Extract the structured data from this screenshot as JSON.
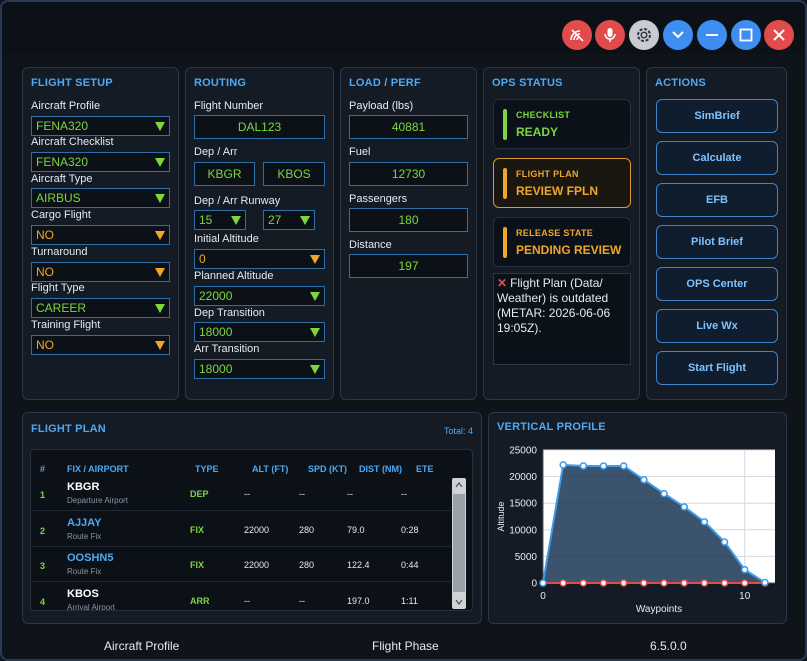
{
  "window": {
    "buttons": [
      {
        "name": "connection-icon",
        "color": "#e24b4b"
      },
      {
        "name": "microphone-icon",
        "color": "#e24b4b"
      },
      {
        "name": "gear-icon",
        "color": "#c8ccd2"
      },
      {
        "name": "chevron-down-icon",
        "color": "#3d8ef0"
      },
      {
        "name": "minimize-icon",
        "color": "#3d8ef0"
      },
      {
        "name": "maximize-icon",
        "color": "#3d8ef0"
      },
      {
        "name": "close-icon",
        "color": "#e24b4b"
      }
    ]
  },
  "flight_setup": {
    "title": "FLIGHT SETUP",
    "fields": [
      {
        "label": "Aircraft Profile",
        "value": "FENA320",
        "color": "green"
      },
      {
        "label": "Aircraft Checklist",
        "value": "FENA320",
        "color": "green"
      },
      {
        "label": "Aircraft Type",
        "value": "AIRBUS",
        "color": "green"
      },
      {
        "label": "Cargo Flight",
        "value": "NO",
        "color": "orange"
      },
      {
        "label": "Turnaround",
        "value": "NO",
        "color": "orange"
      },
      {
        "label": "Flight Type",
        "value": "CAREER",
        "color": "green"
      },
      {
        "label": "Training Flight",
        "value": "NO",
        "color": "orange"
      }
    ]
  },
  "routing": {
    "title": "ROUTING",
    "flight_number_label": "Flight Number",
    "flight_number": "DAL123",
    "dep_arr_label": "Dep / Arr",
    "dep": "KBGR",
    "arr": "KBOS",
    "runway_label": "Dep / Arr Runway",
    "dep_runway": "15",
    "arr_runway": "27",
    "initial_alt_label": "Initial Altitude",
    "initial_alt": "0",
    "planned_alt_label": "Planned Altitude",
    "planned_alt": "22000",
    "dep_transition_label": "Dep Transition",
    "dep_transition": "18000",
    "arr_transition_label": "Arr Transition",
    "arr_transition": "18000"
  },
  "load_perf": {
    "title": "LOAD / PERF",
    "payload_label": "Payload (lbs)",
    "payload": "40881",
    "fuel_label": "Fuel",
    "fuel": "12730",
    "passengers_label": "Passengers",
    "passengers": "180",
    "distance_label": "Distance",
    "distance": "197"
  },
  "ops_status": {
    "title": "OPS STATUS",
    "items": [
      {
        "label": "CHECKLIST",
        "value": "READY",
        "color": "#7bd63f"
      },
      {
        "label": "FLIGHT PLAN",
        "value": "REVIEW FPLN",
        "color": "#f0a62a"
      },
      {
        "label": "RELEASE STATE",
        "value": "PENDING REVIEW",
        "color": "#f0a62a"
      }
    ],
    "message": "Flight Plan (Data/ Weather) is outdated (METAR: 2026-06-06 19:05Z)."
  },
  "actions": {
    "title": "ACTIONS",
    "buttons": [
      "SimBrief",
      "Calculate",
      "EFB",
      "Pilot Brief",
      "OPS Center",
      "Live Wx",
      "Start Flight"
    ]
  },
  "flight_plan": {
    "title": "FLIGHT PLAN",
    "total": "Total: 4",
    "columns": [
      "#",
      "FIX / AIRPORT",
      "TYPE",
      "ALT (FT)",
      "SPD (KT)",
      "DIST (NM)",
      "ETE"
    ],
    "rows": [
      {
        "num": "1",
        "fix": "KBGR",
        "sub": "Departure Airport",
        "type": "DEP",
        "alt": "--",
        "spd": "--",
        "dist": "--",
        "ete": "--",
        "fix_color": "#ffffff"
      },
      {
        "num": "2",
        "fix": "AJJAY",
        "sub": "Route Fix",
        "type": "FIX",
        "alt": "22000",
        "spd": "280",
        "dist": "79.0",
        "ete": "0:28",
        "fix_color": "#4ea9f2"
      },
      {
        "num": "3",
        "fix": "OOSHN5",
        "sub": "Route Fix",
        "type": "FIX",
        "alt": "22000",
        "spd": "280",
        "dist": "122.4",
        "ete": "0:44",
        "fix_color": "#4ea9f2"
      },
      {
        "num": "4",
        "fix": "KBOS",
        "sub": "Arrival Airport",
        "type": "ARR",
        "alt": "--",
        "spd": "--",
        "dist": "197.0",
        "ete": "1:11",
        "fix_color": "#ffffff"
      }
    ]
  },
  "vertical_profile": {
    "title": "VERTICAL PROFILE"
  },
  "chart_data": {
    "type": "line",
    "title": "VERTICAL PROFILE",
    "xlabel": "Waypoints",
    "ylabel": "Altitude",
    "xlim": [
      0,
      11.5
    ],
    "ylim": [
      0,
      25000
    ],
    "yticks": [
      0,
      5000,
      10000,
      15000,
      20000,
      25000
    ],
    "xticks": [
      0,
      10
    ],
    "grid": true,
    "series": [
      {
        "values": [
          {
            "x": 0,
            "y": 0
          },
          {
            "x": 1,
            "y": 22200
          },
          {
            "x": 2,
            "y": 22000
          },
          {
            "x": 3,
            "y": 22000
          },
          {
            "x": 4,
            "y": 22000
          },
          {
            "x": 5,
            "y": 19400
          },
          {
            "x": 6,
            "y": 16800
          },
          {
            "x": 7,
            "y": 14300
          },
          {
            "x": 8,
            "y": 11500
          },
          {
            "x": 9,
            "y": 7700
          },
          {
            "x": 10,
            "y": 2500
          },
          {
            "x": 11,
            "y": 100
          }
        ],
        "color": "#3d9bea"
      },
      {
        "values": [
          {
            "x": 0,
            "y": 0
          },
          {
            "x": 1,
            "y": 0
          },
          {
            "x": 2,
            "y": 0
          },
          {
            "x": 3,
            "y": 0
          },
          {
            "x": 4,
            "y": 0
          },
          {
            "x": 5,
            "y": 0
          },
          {
            "x": 6,
            "y": 0
          },
          {
            "x": 7,
            "y": 0
          },
          {
            "x": 8,
            "y": 0
          },
          {
            "x": 9,
            "y": 0
          },
          {
            "x": 10,
            "y": 0
          },
          {
            "x": 11,
            "y": 0
          }
        ],
        "color": "#e24b4b"
      }
    ]
  },
  "footer": {
    "aircraft_profile": "Aircraft Profile",
    "flight_phase": "Flight Phase",
    "version": "6.5.0.0"
  }
}
